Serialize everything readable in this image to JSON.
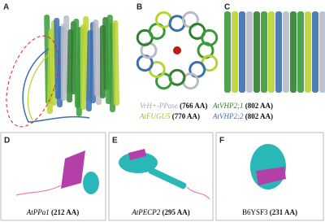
{
  "panels": [
    "A",
    "B",
    "C",
    "D",
    "E",
    "F"
  ],
  "legend": [
    {
      "name": "VrH+-PPase",
      "size": "(766 AA)"
    },
    {
      "name": "AtVHP2;1",
      "size": "(802 AA)"
    },
    {
      "name": "AtFUGU5",
      "size": "(770 AA)"
    },
    {
      "name": "AtVHP2;2",
      "size": "(802 AA)"
    }
  ],
  "captions": [
    {
      "name": "AtPPa1",
      "size": "(212 AA)"
    },
    {
      "name": "AtPECP2",
      "size": "(295 AA)"
    },
    {
      "name": "B6YSF3",
      "size": "(231 AA)"
    }
  ]
}
